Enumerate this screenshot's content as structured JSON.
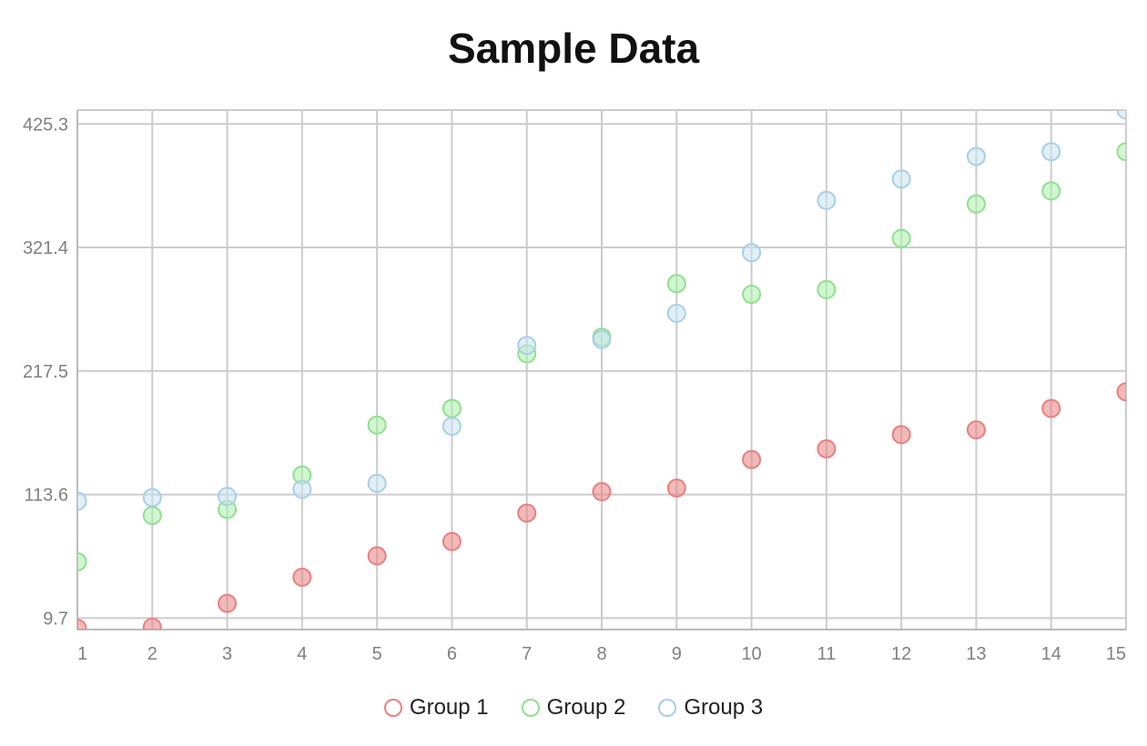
{
  "chart_data": {
    "type": "scatter",
    "title": "Sample Data",
    "x_ticks": [
      "1",
      "2",
      "3",
      "4",
      "5",
      "6",
      "7",
      "8",
      "9",
      "10",
      "11",
      "12",
      "13",
      "14",
      "15"
    ],
    "y_ticks": [
      "9.7",
      "113.6",
      "217.5",
      "321.4",
      "425.3"
    ],
    "xlim": [
      1,
      15
    ],
    "ylim": [
      0,
      437
    ],
    "grid": true,
    "legend_position": "bottom",
    "series": [
      {
        "name": "Group 1",
        "color": "#e88080",
        "fill": "rgba(232,128,128,0.55)",
        "x": [
          1,
          2,
          3,
          4,
          5,
          6,
          7,
          8,
          9,
          10,
          11,
          12,
          13,
          14,
          15
        ],
        "y": [
          1,
          2,
          22,
          44,
          62,
          74,
          98,
          116,
          119,
          143,
          152,
          164,
          168,
          186,
          200
        ]
      },
      {
        "name": "Group 2",
        "color": "#8fe08f",
        "fill": "rgba(170,240,170,0.55)",
        "x": [
          1,
          2,
          3,
          4,
          5,
          6,
          7,
          8,
          9,
          10,
          11,
          12,
          13,
          14,
          15
        ],
        "y": [
          57,
          96,
          101,
          130,
          172,
          186,
          232,
          246,
          291,
          282,
          286,
          329,
          358,
          369,
          402
        ]
      },
      {
        "name": "Group 3",
        "color": "#a8cfe6",
        "fill": "rgba(200,225,240,0.55)",
        "x": [
          1,
          2,
          3,
          4,
          5,
          6,
          7,
          8,
          9,
          10,
          11,
          12,
          13,
          14,
          15
        ],
        "y": [
          108,
          111,
          112,
          118,
          123,
          171,
          239,
          244,
          266,
          317,
          361,
          379,
          398,
          402,
          437
        ]
      }
    ]
  }
}
